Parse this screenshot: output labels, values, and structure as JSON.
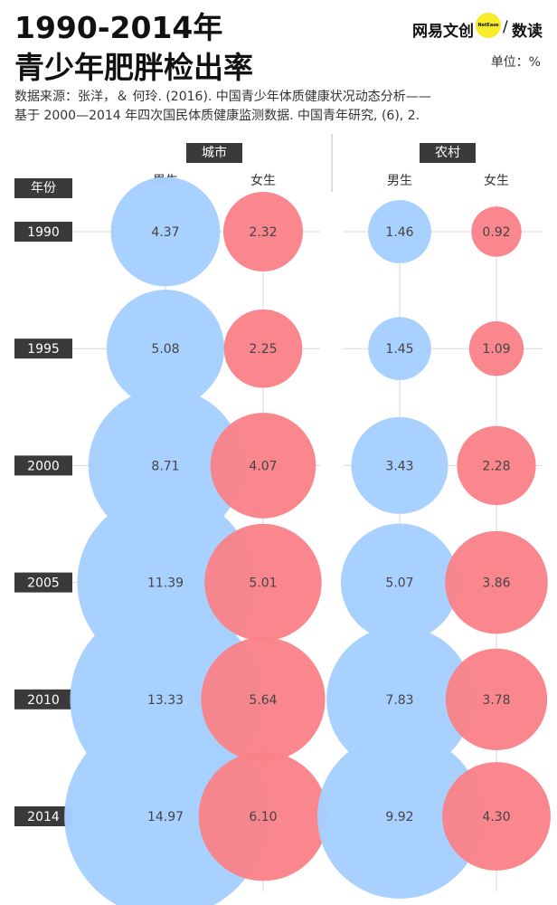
{
  "header": {
    "title_line1": "1990-2014年",
    "title_line2": "青少年肥胖检出率",
    "source_line1": "数据来源：张洋，＆ 何玲. (2016). 中国青少年体质健康状况动态分析——",
    "source_line2": "基于 2000—2014 年四次国民体质健康监测数据. 中国青年研究, (6), 2.",
    "unit": "单位：%"
  },
  "logo": {
    "brand": "网易文创",
    "badge": "NetEase",
    "sep": "/",
    "sub": "数读"
  },
  "colors": {
    "male": "#a6cfff",
    "female": "#f98389",
    "tag_bg": "#3a3a3a",
    "grid": "#d9d9d9"
  },
  "chart_data": {
    "type": "bubble",
    "title": "1990-2014年青少年肥胖检出率",
    "unit": "%",
    "year_header": "年份",
    "years": [
      "1990",
      "1995",
      "2000",
      "2005",
      "2010",
      "2014"
    ],
    "groups": [
      {
        "name": "城市",
        "series": [
          {
            "name": "男生",
            "values": [
              4.37,
              5.08,
              8.71,
              11.39,
              13.33,
              14.97
            ]
          },
          {
            "name": "女生",
            "values": [
              2.32,
              2.25,
              4.07,
              5.01,
              5.64,
              6.1
            ]
          }
        ]
      },
      {
        "name": "农村",
        "series": [
          {
            "name": "男生",
            "values": [
              1.46,
              1.45,
              3.43,
              5.07,
              7.83,
              9.92
            ]
          },
          {
            "name": "女生",
            "values": [
              0.92,
              1.09,
              2.28,
              3.86,
              3.78,
              4.3
            ]
          }
        ]
      }
    ]
  }
}
